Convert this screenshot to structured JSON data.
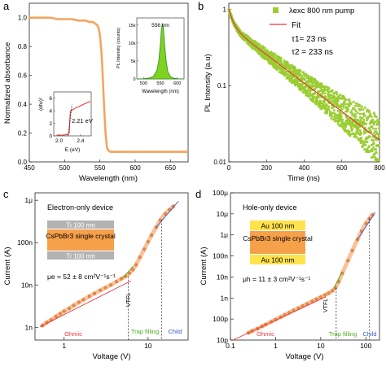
{
  "colors": {
    "absorbance": "#f5a35c",
    "pl_fill": "#7ed321",
    "pl_line": "#2e8b1e",
    "decay_points": "#9acd32",
    "fit_line": "#e8363a",
    "iv_points": "#f08a46",
    "iv_band": "#f7b98a",
    "slope_line_red": "#e8363a",
    "slope_line_blue": "#3a5fcd",
    "slope_line_green": "#4caf20",
    "ohmic_label": "#e8363a",
    "trap_label": "#4caf20",
    "child_label": "#3a5fcd",
    "ti_layer": "#b3b3b3",
    "au_layer": "#ffe34d",
    "crystal_layer": "#f7a04a"
  },
  "chart_data": [
    {
      "panel": "a",
      "type": "line",
      "xlabel": "Wavelength (nm)",
      "ylabel": "Normalized absorbance",
      "xlim": [
        450,
        675
      ],
      "ylim": [
        0,
        1.1
      ],
      "xticks": [
        "450",
        "500",
        "550",
        "600",
        "650"
      ],
      "yticks": [
        "0.0",
        "0.2",
        "0.4",
        "0.6",
        "0.8",
        "1.0"
      ],
      "x": [
        450,
        460,
        470,
        480,
        490,
        500,
        510,
        520,
        530,
        535,
        540,
        543,
        546,
        548,
        550,
        552,
        554,
        556,
        558,
        560,
        562,
        565,
        570,
        580,
        600,
        620,
        640,
        660,
        675
      ],
      "y": [
        1.0,
        1.0,
        1.0,
        1.0,
        0.99,
        0.99,
        0.99,
        0.98,
        0.98,
        0.97,
        0.97,
        0.96,
        0.95,
        0.93,
        0.88,
        0.78,
        0.6,
        0.38,
        0.2,
        0.1,
        0.08,
        0.07,
        0.07,
        0.07,
        0.07,
        0.07,
        0.07,
        0.07,
        0.07
      ],
      "inset_pl": {
        "xlabel": "Wavelength (nm)",
        "ylabel": "PL Intensity (counts)",
        "annotation": "556 nm",
        "xticks": [
          "500",
          "550",
          "600"
        ],
        "yticks": [
          "0",
          "5k",
          "10k",
          "15k"
        ],
        "xlim": [
          480,
          620
        ],
        "ylim": [
          0,
          17000
        ],
        "x": [
          480,
          500,
          520,
          530,
          540,
          545,
          550,
          553,
          556,
          559,
          562,
          567,
          572,
          580,
          590,
          600,
          620
        ],
        "y": [
          0,
          50,
          300,
          800,
          2500,
          5000,
          10000,
          14000,
          15500,
          14000,
          10000,
          5000,
          2000,
          600,
          200,
          50,
          0
        ]
      },
      "inset_tauc": {
        "xlabel": "E (eV)",
        "ylabel": "(αhν)²",
        "annotation": "2.21 eV",
        "xticks": [
          "2.0",
          "2.4"
        ],
        "yticks": [
          "0",
          "2",
          "4",
          "6"
        ],
        "xlim": [
          1.9,
          2.6
        ],
        "ylim": [
          0,
          7
        ],
        "x": [
          1.95,
          2.05,
          2.15,
          2.19,
          2.2,
          2.21,
          2.22,
          2.3,
          2.4,
          2.5,
          2.58
        ],
        "y": [
          0.1,
          0.1,
          0.2,
          0.5,
          2.5,
          3.8,
          4.0,
          4.4,
          4.8,
          5.2,
          5.5
        ],
        "fit_line_x": [
          2.17,
          2.24
        ],
        "fit_line_y": [
          0,
          5.0
        ]
      }
    },
    {
      "panel": "b",
      "type": "scatter",
      "xlabel": "Time (ns)",
      "ylabel": "PL Intensity (a.u)",
      "xlim": [
        0,
        800
      ],
      "ylim": [
        0.01,
        1.2
      ],
      "yscale": "log",
      "xticks": [
        "0",
        "200",
        "400",
        "600",
        "800"
      ],
      "yticks": [
        "0.01",
        "0.1",
        "1"
      ],
      "legend": {
        "placement": "top-right",
        "data_label": "λexc 800 nm pump",
        "fit_label": "Fit",
        "tau1": "τ1= 23 ns",
        "tau2": "τ2 = 233 ns"
      },
      "fit": {
        "a1": 0.4,
        "tau1": 23,
        "a2": 0.6,
        "tau2": 233
      }
    },
    {
      "panel": "c",
      "type": "scatter",
      "title": "Electron-only device",
      "xlabel": "Voltage (V)",
      "ylabel": "Current (A)",
      "xscale": "log",
      "yscale": "log",
      "xlim": [
        0.45,
        30
      ],
      "ylim": [
        5e-10,
        1.5e-06
      ],
      "xticks": [
        "1",
        "10"
      ],
      "yticks": [
        "1n",
        "10n",
        "100n",
        "1μ"
      ],
      "x": [
        0.55,
        0.62,
        0.7,
        0.8,
        0.9,
        1.0,
        1.15,
        1.3,
        1.5,
        1.7,
        2.0,
        2.3,
        2.7,
        3.1,
        3.6,
        4.2,
        4.8,
        5.4,
        6.0,
        6.6,
        7.2,
        8.0,
        9.0,
        10.0,
        11.0,
        12.5,
        14.0,
        16.0,
        18.0,
        20.0
      ],
      "y": [
        1.1e-09,
        1.3e-09,
        1.5e-09,
        1.8e-09,
        2.1e-09,
        2.4e-09,
        2.8e-09,
        3.3e-09,
        3.9e-09,
        4.5e-09,
        5.4e-09,
        6.3e-09,
        7.5e-09,
        8.6e-09,
        1e-08,
        1.2e-08,
        1.4e-08,
        1.6e-08,
        1.9e-08,
        2.3e-08,
        3e-08,
        4.5e-08,
        7e-08,
        1.05e-07,
        1.5e-07,
        2.3e-07,
        3.4e-07,
        4.8e-07,
        6e-07,
        7.2e-07
      ],
      "device_layers": [
        "Ti 100 nm",
        "CsPbBr3 single crystal",
        "Ti 100 nm"
      ],
      "mobility": "μe = 52 ± 8 cm²V⁻¹s⁻¹",
      "vtfl_label": "VTFL",
      "region_labels": [
        "Ohmic",
        "Trap filling",
        "Child"
      ],
      "vtfl_x": 5.8,
      "child_x": 14.5
    },
    {
      "panel": "d",
      "type": "scatter",
      "title": "Hole-only device",
      "xlabel": "Voltage (V)",
      "ylabel": "Current (A)",
      "xscale": "log",
      "yscale": "log",
      "xlim": [
        0.1,
        200
      ],
      "ylim": [
        1e-11,
        0.0001
      ],
      "xticks": [
        "0.1",
        "1",
        "10",
        "100"
      ],
      "yticks": [
        "10p",
        "100p",
        "1n",
        "10n",
        "100n",
        "1μ",
        "10μ",
        "100μ"
      ],
      "x": [
        0.25,
        0.3,
        0.4,
        0.5,
        0.6,
        0.8,
        1.0,
        1.3,
        1.6,
        2.0,
        2.5,
        3.2,
        4.0,
        5.0,
        6.5,
        8.0,
        10.0,
        12.5,
        15.0,
        18.0,
        21.0,
        25.0,
        30.0,
        40.0,
        50.0,
        65.0,
        80.0,
        100.0,
        120.0,
        140.0
      ],
      "y": [
        2.2e-11,
        2.7e-11,
        3.5e-11,
        4.5e-11,
        5.5e-11,
        7.5e-11,
        9.5e-11,
        1.25e-10,
        1.6e-10,
        2e-10,
        2.6e-10,
        3.3e-10,
        4.2e-10,
        5.3e-10,
        7e-10,
        8.8e-10,
        1.1e-09,
        1.4e-09,
        1.7e-09,
        2.2e-09,
        3e-09,
        6e-09,
        1.5e-08,
        6e-08,
        1.8e-07,
        6e-07,
        1.5e-06,
        3.5e-06,
        6e-06,
        9e-06
      ],
      "device_layers": [
        "Au 100 nm",
        "CsPbBr3 single crystal",
        "Au 100 nm"
      ],
      "mobility": "μh = 11 ± 3 cm²V⁻¹s⁻¹",
      "vtfl_label": "VTFL",
      "region_labels": [
        "Ohmic",
        "Trap filling",
        "Child"
      ],
      "vtfl_x": 22,
      "child_x": 120
    }
  ],
  "panel_labels": [
    "a",
    "b",
    "c",
    "d"
  ]
}
